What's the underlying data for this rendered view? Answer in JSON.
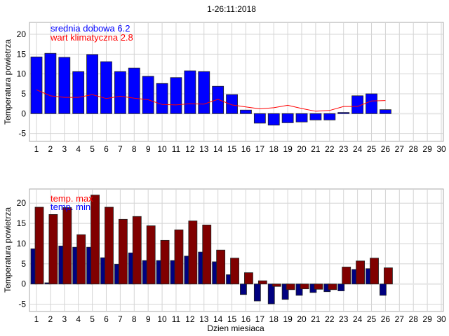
{
  "chart_data": [
    {
      "type": "bar",
      "title": "1-26:11:2018",
      "ylabel": "Temperatura powietrza",
      "xlabel": "",
      "ylim": [
        -7,
        23
      ],
      "xlim": [
        0.5,
        30
      ],
      "grid": true,
      "yticks": [
        -5,
        0,
        5,
        10,
        15,
        20
      ],
      "xticks": [
        1,
        2,
        3,
        4,
        5,
        6,
        7,
        8,
        9,
        10,
        11,
        12,
        13,
        14,
        15,
        16,
        17,
        18,
        19,
        20,
        21,
        22,
        23,
        24,
        25,
        26,
        27,
        28,
        29,
        30
      ],
      "legend": [
        "srednia dobowa 6.2",
        "wart klimatyczna 2.8"
      ],
      "legend_placement": "top-left",
      "series": [
        {
          "name": "srednia dobowa",
          "kind": "bar",
          "color": "#0000ff",
          "values": [
            14.3,
            15.2,
            14.2,
            10.6,
            14.9,
            13.1,
            10.6,
            11.5,
            9.4,
            7.6,
            9.1,
            10.8,
            10.6,
            6.9,
            4.8,
            0.9,
            -2.4,
            -2.9,
            -2.3,
            -2.1,
            -1.6,
            -1.6,
            0.3,
            4.5,
            5.0,
            1.0
          ]
        },
        {
          "name": "wart klimatyczna",
          "kind": "line",
          "color": "#ff0000",
          "values": [
            6.0,
            4.5,
            4.1,
            4.1,
            4.8,
            3.8,
            4.4,
            3.9,
            3.5,
            2.3,
            2.2,
            2.5,
            2.4,
            3.6,
            2.2,
            1.7,
            1.2,
            1.5,
            2.1,
            1.3,
            0.6,
            0.8,
            1.8,
            1.8,
            3.2,
            3.3
          ]
        }
      ]
    },
    {
      "type": "bar",
      "title": "",
      "ylabel": "Temperatura powietrza",
      "xlabel": "Dzien miesiaca",
      "ylim": [
        -6.8,
        23.5
      ],
      "xlim": [
        0.5,
        30
      ],
      "grid": true,
      "yticks": [
        -5,
        0,
        5,
        10,
        15,
        20
      ],
      "xticks": [
        1,
        2,
        3,
        4,
        5,
        6,
        7,
        8,
        9,
        10,
        11,
        12,
        13,
        14,
        15,
        16,
        17,
        18,
        19,
        20,
        21,
        22,
        23,
        24,
        25,
        26,
        27,
        28,
        29,
        30
      ],
      "legend": [
        "temp. max",
        "temp. min"
      ],
      "legend_placement": "top-left",
      "series": [
        {
          "name": "temp. min",
          "kind": "bar",
          "color": "#000080",
          "values": [
            8.7,
            0.3,
            9.4,
            9.1,
            9.1,
            6.5,
            4.9,
            7.7,
            5.8,
            5.8,
            5.8,
            6.9,
            7.9,
            5.5,
            2.3,
            -2.6,
            -4.2,
            -4.9,
            -3.8,
            -2.8,
            -2.1,
            -1.9,
            -1.7,
            3.6,
            3.8,
            -2.8
          ]
        },
        {
          "name": "temp. max",
          "kind": "bar",
          "color": "#800000",
          "values": [
            19.0,
            17.2,
            18.9,
            12.2,
            22.0,
            19.0,
            16.0,
            16.7,
            14.4,
            10.8,
            13.4,
            15.6,
            14.6,
            8.4,
            6.4,
            2.8,
            0.8,
            -0.6,
            -1.4,
            -1.2,
            -1.3,
            -1.4,
            4.2,
            5.7,
            6.4,
            4.0
          ]
        }
      ]
    }
  ]
}
